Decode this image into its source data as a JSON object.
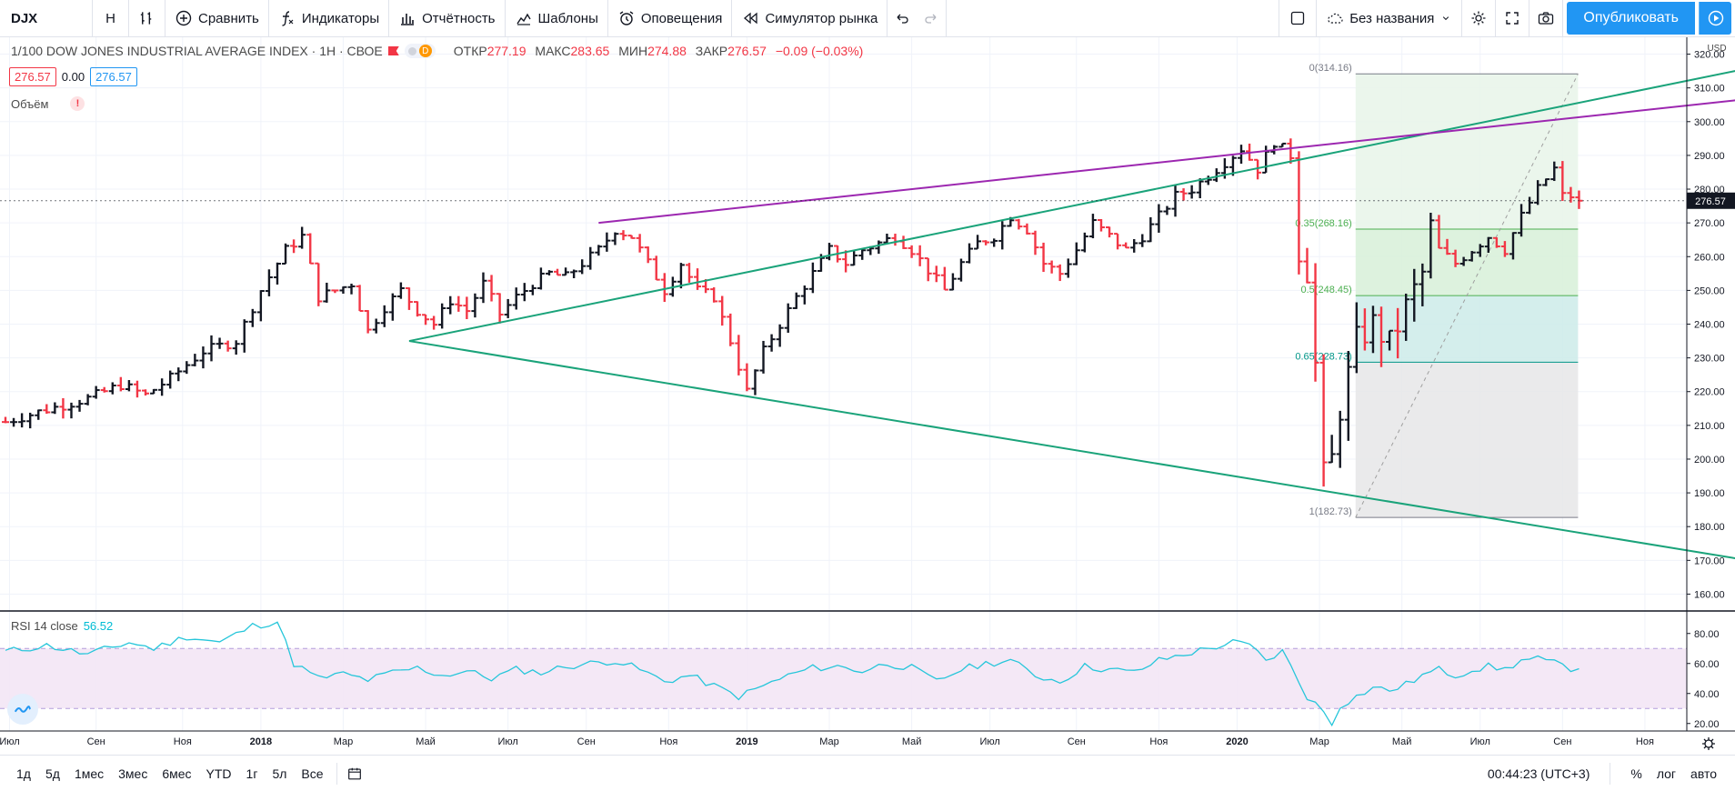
{
  "toolbar": {
    "symbol": "DJX",
    "interval": "Н",
    "compare": "Сравнить",
    "indicators": "Индикаторы",
    "financials": "Отчётность",
    "templates": "Шаблоны",
    "alerts": "Оповещения",
    "replay": "Симулятор рынка",
    "layout_name": "Без названия",
    "publish": "Опубликовать"
  },
  "legend": {
    "title": "1/100 DOW JONES INDUSTRIAL AVERAGE INDEX · 1Н · СВОЕ",
    "badge": "D",
    "open_label": "ОТКР",
    "open": "277.19",
    "high_label": "МАКС",
    "high": "283.65",
    "low_label": "МИН",
    "low": "274.88",
    "close_label": "ЗАКР",
    "close": "276.57",
    "change": "−0.09 (−0.03%)",
    "bid": "276.57",
    "spread": "0.00",
    "ask": "276.57",
    "volume_label": "Объём",
    "volume_warn": "!"
  },
  "rsi": {
    "label": "RSI 14 close",
    "value": "56.52"
  },
  "bottombar": {
    "ranges": [
      "1д",
      "5д",
      "1мес",
      "3мес",
      "6мес",
      "YTD",
      "1г",
      "5л",
      "Все"
    ],
    "clock": "00:44:23 (UTC+3)",
    "percent": "%",
    "log": "лог",
    "auto": "авто"
  },
  "chart_data": {
    "type": "ohlc",
    "title": "1/100 DOW JONES INDUSTRIAL AVERAGE INDEX · 1Н",
    "currency": "USD",
    "ylim": [
      155,
      325
    ],
    "price_ticks": [
      320,
      310,
      300,
      290,
      280,
      270,
      260,
      250,
      240,
      230,
      220,
      210,
      200,
      190,
      180,
      170,
      160
    ],
    "price_tick_labels": [
      "320.00",
      "310.00",
      "300.00",
      "290.00",
      "280.00",
      "270.00",
      "260.00",
      "250.00",
      "240.00",
      "230.00",
      "220.00",
      "210.00",
      "200.00",
      "190.00",
      "180.00",
      "170.00",
      "160.00"
    ],
    "last_price": 276.57,
    "last_price_label": "276.57",
    "x_labels": [
      {
        "t": 0.5,
        "label": "Июл",
        "bold": false
      },
      {
        "t": 11.0,
        "label": "Сен",
        "bold": false
      },
      {
        "t": 21.5,
        "label": "Ноя",
        "bold": false
      },
      {
        "t": 31.0,
        "label": "2018",
        "bold": true
      },
      {
        "t": 41.0,
        "label": "Мар",
        "bold": false
      },
      {
        "t": 51.0,
        "label": "Май",
        "bold": false
      },
      {
        "t": 61.0,
        "label": "Июл",
        "bold": false
      },
      {
        "t": 70.5,
        "label": "Сен",
        "bold": false
      },
      {
        "t": 80.5,
        "label": "Ноя",
        "bold": false
      },
      {
        "t": 90.0,
        "label": "2019",
        "bold": true
      },
      {
        "t": 100.0,
        "label": "Мар",
        "bold": false
      },
      {
        "t": 110.0,
        "label": "Май",
        "bold": false
      },
      {
        "t": 119.5,
        "label": "Июл",
        "bold": false
      },
      {
        "t": 130.0,
        "label": "Сен",
        "bold": false
      },
      {
        "t": 140.0,
        "label": "Ноя",
        "bold": false
      },
      {
        "t": 149.5,
        "label": "2020",
        "bold": true
      },
      {
        "t": 159.5,
        "label": "Мар",
        "bold": false
      },
      {
        "t": 169.5,
        "label": "Май",
        "bold": false
      },
      {
        "t": 179.0,
        "label": "Июл",
        "bold": false
      },
      {
        "t": 189.0,
        "label": "Сен",
        "bold": false
      },
      {
        "t": 199.0,
        "label": "Ноя",
        "bold": false
      }
    ],
    "anchors": [
      [
        0,
        211
      ],
      [
        4,
        214
      ],
      [
        7,
        216
      ],
      [
        10,
        218
      ],
      [
        14,
        222
      ],
      [
        17,
        219
      ],
      [
        20,
        224
      ],
      [
        24,
        232
      ],
      [
        28,
        235
      ],
      [
        31,
        250
      ],
      [
        34,
        262
      ],
      [
        36,
        266
      ],
      [
        38,
        248
      ],
      [
        40,
        250
      ],
      [
        42,
        252
      ],
      [
        44,
        238
      ],
      [
        46,
        245
      ],
      [
        48,
        250
      ],
      [
        50,
        244
      ],
      [
        52,
        240
      ],
      [
        54,
        247
      ],
      [
        56,
        244
      ],
      [
        58,
        252
      ],
      [
        60,
        243
      ],
      [
        62,
        248
      ],
      [
        64,
        252
      ],
      [
        66,
        255
      ],
      [
        68,
        254
      ],
      [
        70,
        258
      ],
      [
        72,
        262
      ],
      [
        74,
        268
      ],
      [
        76,
        266
      ],
      [
        78,
        258
      ],
      [
        80,
        250
      ],
      [
        82,
        258
      ],
      [
        84,
        250
      ],
      [
        86,
        248
      ],
      [
        88,
        235
      ],
      [
        90,
        220
      ],
      [
        92,
        232
      ],
      [
        94,
        240
      ],
      [
        96,
        248
      ],
      [
        98,
        255
      ],
      [
        100,
        262
      ],
      [
        102,
        258
      ],
      [
        104,
        262
      ],
      [
        106,
        264
      ],
      [
        108,
        266
      ],
      [
        110,
        262
      ],
      [
        112,
        256
      ],
      [
        114,
        250
      ],
      [
        116,
        258
      ],
      [
        118,
        264
      ],
      [
        120,
        266
      ],
      [
        122,
        272
      ],
      [
        124,
        268
      ],
      [
        126,
        258
      ],
      [
        128,
        255
      ],
      [
        130,
        262
      ],
      [
        132,
        270
      ],
      [
        134,
        266
      ],
      [
        136,
        262
      ],
      [
        138,
        266
      ],
      [
        140,
        272
      ],
      [
        142,
        278
      ],
      [
        144,
        280
      ],
      [
        146,
        284
      ],
      [
        148,
        288
      ],
      [
        150,
        292
      ],
      [
        152,
        286
      ],
      [
        154,
        294
      ],
      [
        156,
        290
      ],
      [
        157,
        262
      ],
      [
        158,
        256
      ],
      [
        159,
        228
      ],
      [
        160,
        195
      ],
      [
        161,
        200
      ],
      [
        162,
        215
      ],
      [
        164,
        235
      ],
      [
        166,
        240
      ],
      [
        168,
        234
      ],
      [
        170,
        245
      ],
      [
        172,
        255
      ],
      [
        173,
        270
      ],
      [
        174,
        262
      ],
      [
        176,
        258
      ],
      [
        178,
        262
      ],
      [
        180,
        266
      ],
      [
        182,
        262
      ],
      [
        184,
        272
      ],
      [
        186,
        280
      ],
      [
        188,
        286
      ],
      [
        189,
        278
      ],
      [
        190,
        278
      ],
      [
        191,
        276.57
      ]
    ],
    "rsi": {
      "ylim": [
        15,
        95
      ],
      "ticks": [
        80,
        60,
        40,
        20
      ],
      "tick_labels": [
        "80.00",
        "60.00",
        "40.00",
        "20.00"
      ],
      "upper": 70,
      "lower": 30,
      "values_anchor": [
        [
          0,
          68
        ],
        [
          5,
          72
        ],
        [
          10,
          66
        ],
        [
          15,
          74
        ],
        [
          18,
          70
        ],
        [
          22,
          78
        ],
        [
          26,
          74
        ],
        [
          30,
          85
        ],
        [
          33,
          88
        ],
        [
          35,
          60
        ],
        [
          38,
          50
        ],
        [
          41,
          53
        ],
        [
          44,
          49
        ],
        [
          47,
          54
        ],
        [
          50,
          57
        ],
        [
          53,
          52
        ],
        [
          56,
          55
        ],
        [
          59,
          50
        ],
        [
          62,
          56
        ],
        [
          65,
          54
        ],
        [
          68,
          58
        ],
        [
          71,
          60
        ],
        [
          74,
          62
        ],
        [
          77,
          56
        ],
        [
          80,
          48
        ],
        [
          83,
          52
        ],
        [
          86,
          45
        ],
        [
          89,
          38
        ],
        [
          92,
          45
        ],
        [
          95,
          52
        ],
        [
          98,
          57
        ],
        [
          101,
          58
        ],
        [
          104,
          55
        ],
        [
          107,
          60
        ],
        [
          110,
          57
        ],
        [
          113,
          48
        ],
        [
          116,
          56
        ],
        [
          119,
          60
        ],
        [
          122,
          62
        ],
        [
          125,
          52
        ],
        [
          128,
          48
        ],
        [
          131,
          58
        ],
        [
          134,
          56
        ],
        [
          137,
          54
        ],
        [
          140,
          62
        ],
        [
          143,
          66
        ],
        [
          146,
          70
        ],
        [
          149,
          74
        ],
        [
          151,
          72
        ],
        [
          153,
          62
        ],
        [
          155,
          68
        ],
        [
          156,
          58
        ],
        [
          158,
          38
        ],
        [
          160,
          28
        ],
        [
          161,
          20
        ],
        [
          162,
          32
        ],
        [
          164,
          38
        ],
        [
          166,
          44
        ],
        [
          168,
          42
        ],
        [
          170,
          46
        ],
        [
          172,
          52
        ],
        [
          174,
          56
        ],
        [
          176,
          52
        ],
        [
          178,
          56
        ],
        [
          180,
          58
        ],
        [
          182,
          56
        ],
        [
          184,
          62
        ],
        [
          186,
          63
        ],
        [
          188,
          60
        ],
        [
          190,
          57
        ],
        [
          191,
          56.52
        ]
      ]
    },
    "trendlines": [
      {
        "name": "upper-green-line",
        "color": "#1aa37a",
        "t1": 49,
        "p1": 235,
        "t2": 224,
        "p2": 322
      },
      {
        "name": "lower-green-line",
        "color": "#1aa37a",
        "t1": 49,
        "p1": 235,
        "t2": 224,
        "p2": 165
      },
      {
        "name": "purple-line",
        "color": "#9c27b0",
        "t1": 72,
        "p1": 270,
        "t2": 224,
        "p2": 310
      }
    ],
    "fibonacci": {
      "t1": 163,
      "p1": 182.73,
      "t2": 190,
      "p2": 314.16,
      "levels": [
        {
          "label": "0(314.16)",
          "price": 314.16,
          "color": "#787b86"
        },
        {
          "label": "0.35(268.16)",
          "price": 268.16,
          "color": "#4caf50"
        },
        {
          "label": "0.5(248.45)",
          "price": 248.45,
          "color": "#4caf50"
        },
        {
          "label": "0.65(228.73)",
          "price": 228.73,
          "color": "#009688"
        },
        {
          "label": "1(182.73)",
          "price": 182.73,
          "color": "#787b86"
        }
      ]
    }
  }
}
